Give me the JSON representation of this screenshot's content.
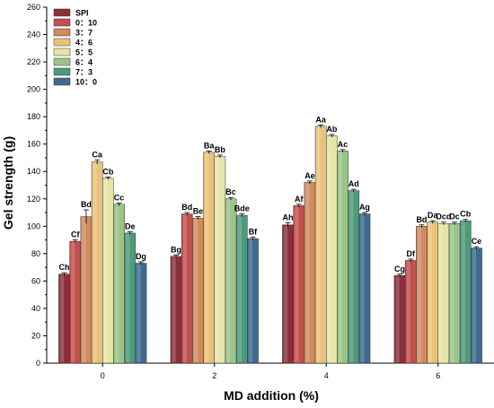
{
  "chart_data": {
    "type": "bar",
    "xlabel": "MD addition (%)",
    "ylabel": "Gel strength (g)",
    "ylim": [
      0,
      260
    ],
    "yticks": [
      0,
      20,
      40,
      60,
      80,
      100,
      120,
      140,
      160,
      180,
      200,
      220,
      240,
      260
    ],
    "categories": [
      "0",
      "2",
      "4",
      "6"
    ],
    "grid": false,
    "legend_position": "top-left",
    "series": [
      {
        "name": "SPI",
        "color": "#8b2f3c",
        "values": [
          65,
          78,
          101,
          64
        ],
        "errors": [
          1,
          1,
          1.5,
          1
        ],
        "labels": [
          "Ch",
          "Bg",
          "Ah",
          "Cg"
        ]
      },
      {
        "name": "0：10",
        "color": "#c0504d",
        "values": [
          89,
          109,
          115,
          75
        ],
        "errors": [
          1,
          1,
          1,
          1
        ],
        "labels": [
          "Cf",
          "Bd",
          "Af",
          "Df"
        ]
      },
      {
        "name": "3：7",
        "color": "#d08a5e",
        "values": [
          107,
          106,
          132,
          100
        ],
        "errors": [
          5,
          1,
          1,
          1
        ],
        "labels": [
          "Bd",
          "Be",
          "Ae",
          "Bd"
        ]
      },
      {
        "name": "4：6",
        "color": "#e8c27a",
        "values": [
          147,
          154,
          173,
          103
        ],
        "errors": [
          1.5,
          1,
          1,
          1
        ],
        "labels": [
          "Ca",
          "Ba",
          "Aa",
          "Da"
        ]
      },
      {
        "name": "5：5",
        "color": "#e6e4a6",
        "values": [
          135,
          151,
          166,
          102
        ],
        "errors": [
          1,
          1,
          1,
          1
        ],
        "labels": [
          "Cb",
          "Bb",
          "Ab",
          "Dcd"
        ]
      },
      {
        "name": "6：4",
        "color": "#9ac48a",
        "values": [
          116,
          120,
          155,
          102
        ],
        "errors": [
          1,
          1,
          1,
          1
        ],
        "labels": [
          "Cc",
          "Bc",
          "Ac",
          "Dc"
        ]
      },
      {
        "name": "7：3",
        "color": "#4f9a7a",
        "values": [
          95,
          108,
          126,
          104
        ],
        "errors": [
          1,
          1,
          1,
          1
        ],
        "labels": [
          "De",
          "Bde",
          "Ad",
          "Cb"
        ]
      },
      {
        "name": "10：0",
        "color": "#3e6a8f",
        "values": [
          73,
          91,
          109,
          84
        ],
        "errors": [
          1,
          1,
          1,
          1
        ],
        "labels": [
          "Dg",
          "Bf",
          "Ag",
          "Ce"
        ]
      }
    ]
  }
}
